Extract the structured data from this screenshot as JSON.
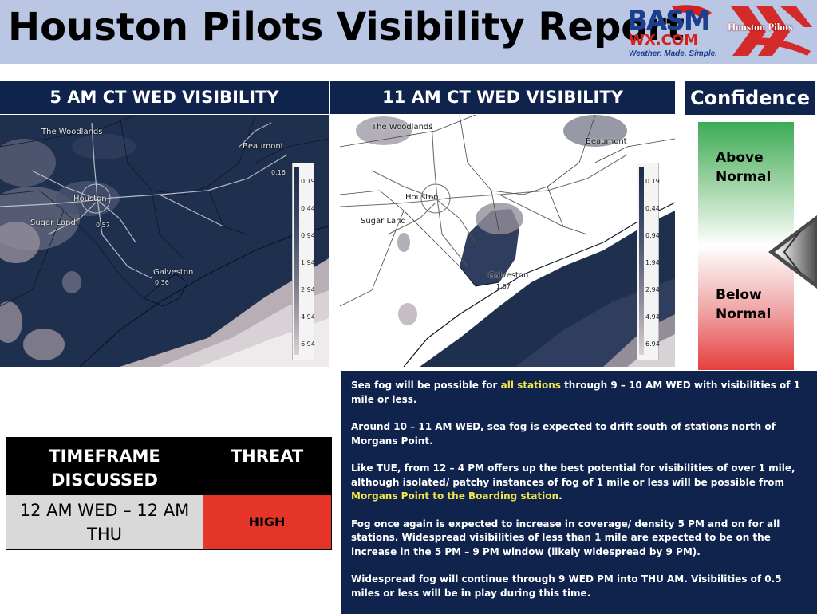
{
  "header": {
    "title": "Houston Pilots Visibility Report",
    "basm_logo_text": "BASM",
    "basm_logo_sub": "WX.COM",
    "basm_tagline": "Weather. Made. Simple.",
    "hp_logo_text": "Houston Pilots"
  },
  "panels": [
    {
      "title": "5 AM CT WED VISIBILITY"
    },
    {
      "title": "11 AM CT WED VISIBILITY"
    }
  ],
  "map1": {
    "labels": {
      "woodlands": "The Woodlands",
      "houston": "Houston",
      "sugarland": "Sugar Land",
      "beaumont": "Beaumont",
      "galveston": "Galveston",
      "v1": "0.16",
      "v2": "0.57",
      "v3": "0.36"
    }
  },
  "map2": {
    "labels": {
      "woodlands": "The Woodlands",
      "houston": "Houston",
      "sugarland": "Sugar Land",
      "beaumont": "Beaumont",
      "galveston": "Galveston",
      "v1": "1.67"
    }
  },
  "legend": {
    "levels": [
      "0.19",
      "0.44",
      "0.94",
      "1.94",
      "2.94",
      "4.94",
      "6.94"
    ],
    "colors": [
      "#1c2b4a",
      "#2f3e5e",
      "#48546f",
      "#6b6e82",
      "#938d9a",
      "#b7aeb6",
      "#d8d2d6"
    ]
  },
  "confidence": {
    "title": "Confidence",
    "above": [
      "Above",
      "Normal"
    ],
    "below": [
      "Below",
      "Normal"
    ]
  },
  "discussion": {
    "p1_a": "Sea fog will be possible for ",
    "p1_hl": "all stations",
    "p1_b": " through 9 – 10 AM WED with visibilities of 1 mile or less.",
    "p2": "Around 10 – 11 AM WED, sea fog is expected to drift south of stations north of Morgans Point.",
    "p3_a": "Like TUE, from 12 – 4 PM offers up the best potential for visibilities of over 1 mile, although isolated/ patchy instances of fog of 1 mile or less will be possible from ",
    "p3_hl": "Morgans Point to the Boarding station",
    "p3_b": ".",
    "p4": "Fog once again is expected to increase in coverage/ density 5 PM and on for all stations. Widespread visibilities of less than 1 mile are expected to be on the increase in the 5 PM – 9 PM window (likely widespread by 9 PM).",
    "p5": "Widespread fog will continue through 9 WED PM into THU AM. Visibilities of 0.5 miles or less will be in play during this time."
  },
  "threat_table": {
    "col1": [
      "TIMEFRAME",
      "DISCUSSED"
    ],
    "col2": "THREAT",
    "timeframe": [
      "12 AM WED – 12 AM",
      "THU"
    ],
    "threat": "HIGH",
    "threat_color": "#e5342a"
  }
}
